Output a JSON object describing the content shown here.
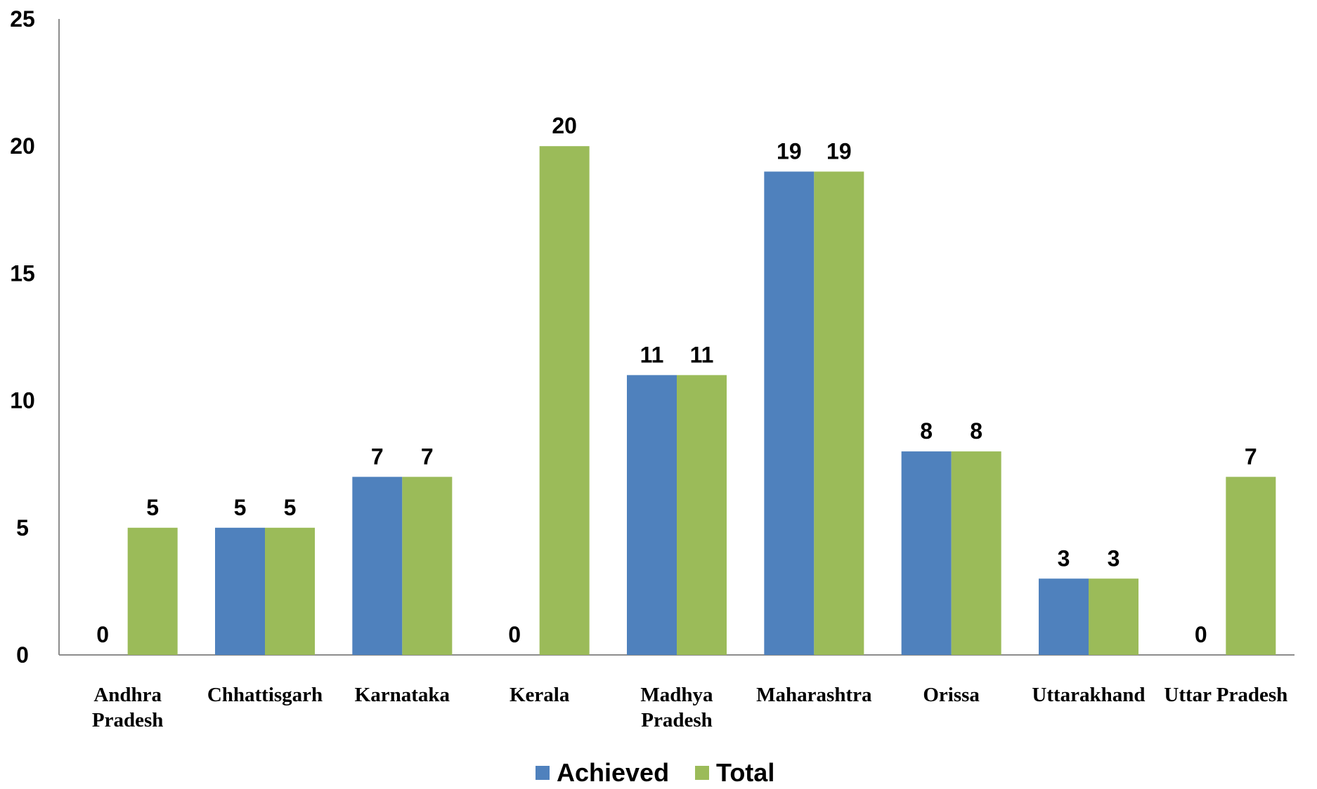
{
  "chart_data": {
    "type": "bar",
    "categories": [
      [
        "Andhra",
        "Pradesh"
      ],
      [
        "Chhattisgarh"
      ],
      [
        "Karnataka"
      ],
      [
        "Kerala"
      ],
      [
        "Madhya",
        "Pradesh"
      ],
      [
        "Maharashtra"
      ],
      [
        "Orissa"
      ],
      [
        "Uttarakhand"
      ],
      [
        "Uttar Pradesh"
      ]
    ],
    "series": [
      {
        "name": "Achieved",
        "color": "#4f81bd",
        "values": [
          0,
          5,
          7,
          0,
          11,
          19,
          8,
          3,
          0
        ]
      },
      {
        "name": "Total",
        "color": "#9bbb59",
        "values": [
          5,
          5,
          7,
          20,
          11,
          19,
          8,
          3,
          7
        ]
      }
    ],
    "ylim": [
      0,
      25
    ],
    "yticks": [
      0,
      5,
      10,
      15,
      20,
      25
    ],
    "grid": false,
    "legend": "bottom-center",
    "data_labels": true
  }
}
